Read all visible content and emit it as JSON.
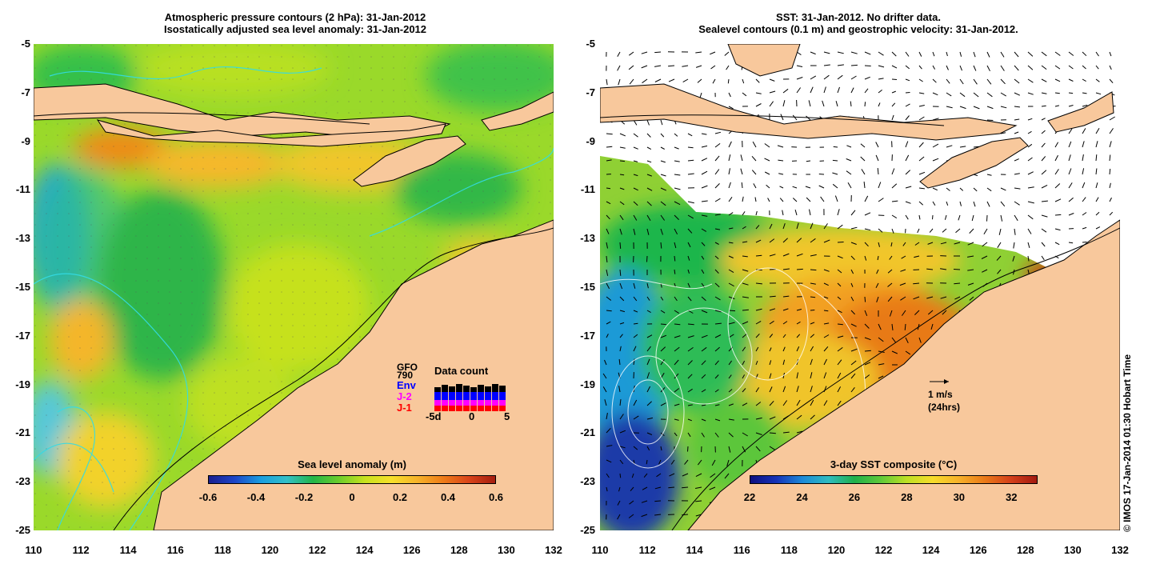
{
  "left_panel": {
    "title_line1": "Atmospheric pressure contours (2 hPa): 31-Jan-2012",
    "title_line2": "Isostatically adjusted sea level anomaly: 31-Jan-2012",
    "colorbar": {
      "title": "Sea level anomaly (m)",
      "ticks": [
        "-0.6",
        "-0.4",
        "-0.2",
        "0",
        "0.2",
        "0.4",
        "0.6"
      ],
      "range": [
        -0.6,
        0.6
      ]
    },
    "data_count": {
      "title": "Data count",
      "labels": [
        {
          "text": "GFO",
          "color": "#000000"
        },
        {
          "text": "790",
          "color": "#000000"
        },
        {
          "text": "Env",
          "color": "#0000ff"
        },
        {
          "text": "J-2",
          "color": "#ff00ff"
        },
        {
          "text": "J-1",
          "color": "#ff0000"
        }
      ],
      "axis_ticks": [
        "-5d",
        "0",
        "5"
      ]
    }
  },
  "right_panel": {
    "title_line1": "SST: 31-Jan-2012. No drifter data.",
    "title_line2": "Sealevel contours (0.1 m) and geostrophic velocity: 31-Jan-2012.",
    "colorbar": {
      "title": "3-day SST composite (°C)",
      "ticks": [
        "22",
        "24",
        "26",
        "28",
        "30",
        "32"
      ],
      "range": [
        22,
        33
      ]
    },
    "scale_arrow": {
      "line1": "1 m/s",
      "line2": "(24hrs)"
    }
  },
  "axes": {
    "lat_ticks": [
      "-5",
      "-7",
      "-9",
      "-11",
      "-13",
      "-15",
      "-17",
      "-19",
      "-21",
      "-23",
      "-25"
    ],
    "lon_ticks": [
      "110",
      "112",
      "114",
      "116",
      "118",
      "120",
      "122",
      "124",
      "126",
      "128",
      "130",
      "132"
    ]
  },
  "credit": "© IMOS 17-Jan-2014 01:30 Hobart Time",
  "colors": {
    "land": "#f8c89c",
    "background": "#ffffff"
  }
}
